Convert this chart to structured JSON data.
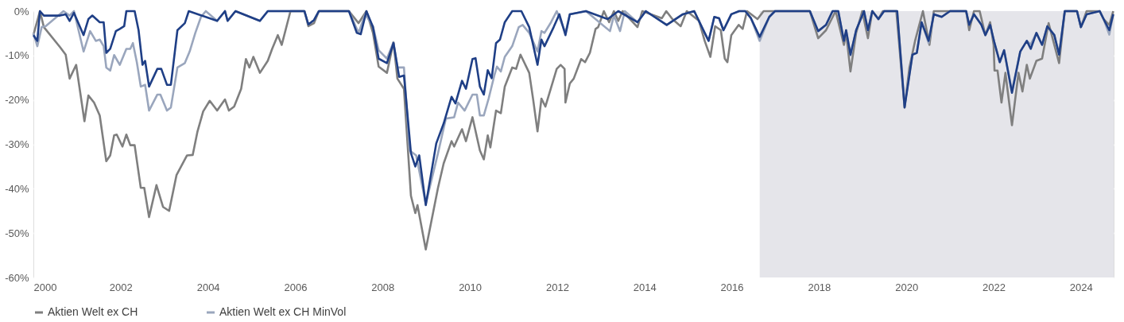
{
  "chart_data": {
    "type": "line",
    "xlim": [
      2000,
      2024.75
    ],
    "xticks": [
      2000,
      2002,
      2004,
      2006,
      2008,
      2010,
      2012,
      2014,
      2016,
      2018,
      2020,
      2022,
      2024
    ],
    "ylim": [
      -60,
      0
    ],
    "yticks": [
      {
        "value": -60,
        "label": "-60%"
      },
      {
        "value": -50,
        "label": "-50%"
      },
      {
        "value": -40,
        "label": "-40%"
      },
      {
        "value": -30,
        "label": "-30%"
      },
      {
        "value": -20,
        "label": "-20%"
      },
      {
        "value": -10,
        "label": "-10%"
      },
      {
        "value": 0,
        "label": "0%"
      }
    ],
    "grid": "y",
    "legend": "bottom",
    "line_style": "solid",
    "bands": [
      {
        "axis": "x",
        "from": 2016.64,
        "to": 2024.75,
        "color": "#e5e5ea"
      }
    ],
    "series": [
      {
        "color": "#7f7f7f",
        "name": "Aktien Welt ex CH",
        "x": [
          2000.0,
          2000.15,
          2000.24,
          2000.61,
          2000.74,
          2000.83,
          2000.98,
          2001.17,
          2001.26,
          2001.39,
          2001.52,
          2001.67,
          2001.76,
          2001.85,
          2001.91,
          2002.04,
          2002.13,
          2002.22,
          2002.32,
          2002.46,
          2002.54,
          2002.65,
          2002.82,
          2002.97,
          2003.11,
          2003.28,
          2003.52,
          2003.65,
          2003.76,
          2003.89,
          2004.04,
          2004.21,
          2004.39,
          2004.48,
          2004.6,
          2004.76,
          2004.87,
          2004.95,
          2005.04,
          2005.19,
          2005.37,
          2005.47,
          2005.6,
          2005.69,
          2005.89,
          2006.21,
          2006.3,
          2006.43,
          2006.54,
          2007.23,
          2007.45,
          2007.63,
          2007.78,
          2007.91,
          2008.1,
          2008.25,
          2008.34,
          2008.49,
          2008.65,
          2008.75,
          2008.8,
          2008.99,
          2009.27,
          2009.4,
          2009.58,
          2009.64,
          2009.82,
          2009.91,
          2010.06,
          2010.23,
          2010.32,
          2010.41,
          2010.47,
          2010.6,
          2010.71,
          2010.8,
          2010.97,
          2011.06,
          2011.16,
          2011.36,
          2011.45,
          2011.55,
          2011.64,
          2011.73,
          2011.99,
          2012.08,
          2012.17,
          2012.19,
          2012.29,
          2012.38,
          2012.55,
          2012.64,
          2012.75,
          2012.88,
          2012.94,
          2013.07,
          2013.19,
          2013.3,
          2013.4,
          2013.5,
          2013.84,
          2013.95,
          2014.4,
          2014.5,
          2014.64,
          2014.83,
          2014.97,
          2015.25,
          2015.38,
          2015.51,
          2015.62,
          2015.75,
          2015.84,
          2015.9,
          2015.99,
          2016.16,
          2016.25,
          2016.35,
          2016.59,
          2016.73,
          2017.79,
          2017.98,
          2018.16,
          2018.38,
          2018.57,
          2018.62,
          2018.72,
          2018.85,
          2018.99,
          2019.12,
          2019.22,
          2019.36,
          2019.46,
          2019.77,
          2019.96,
          2020.07,
          2020.2,
          2020.38,
          2020.53,
          2020.63,
          2021.37,
          2021.44,
          2021.55,
          2021.68,
          2021.81,
          2021.92,
          2022.0,
          2022.02,
          2022.09,
          2022.18,
          2022.27,
          2022.42,
          2022.57,
          2022.66,
          2022.76,
          2022.83,
          2022.98,
          2023.11,
          2023.26,
          2023.5,
          2023.63,
          2023.91,
          2024.0,
          2024.13,
          2024.43,
          2024.52,
          2024.65,
          2024.74
        ],
        "values": [
          -5.4,
          0,
          -3.6,
          -8.1,
          -9.8,
          -15.2,
          -12.1,
          -24.8,
          -19,
          -20.6,
          -23.5,
          -33.8,
          -32.5,
          -28,
          -27.8,
          -30.5,
          -27.8,
          -30.2,
          -30.2,
          -39.8,
          -39.8,
          -46.4,
          -39.2,
          -44.1,
          -45,
          -36.9,
          -32.5,
          -32.4,
          -27.1,
          -22.6,
          -20.2,
          -22.4,
          -19.9,
          -22.4,
          -21.5,
          -17.5,
          -10.8,
          -12.7,
          -10.3,
          -13.9,
          -11.2,
          -8.5,
          -5.4,
          -7.6,
          0,
          0,
          -3.4,
          -2.7,
          0,
          0,
          -2.7,
          0,
          -4.9,
          -12.5,
          -13.9,
          -7,
          -15.2,
          -17.5,
          -41.6,
          -45.5,
          -43.7,
          -53.7,
          -39.8,
          -34.3,
          -29.3,
          -30.5,
          -26.6,
          -29.3,
          -23.9,
          -31.4,
          -33.4,
          -28,
          -30.7,
          -22.4,
          -23,
          -17,
          -12.7,
          -13,
          -9.8,
          -13.9,
          -19.9,
          -27.1,
          -19.7,
          -21.5,
          -13,
          -12.1,
          -13,
          -20.6,
          -16.3,
          -15.2,
          -10.8,
          -11.5,
          -9.4,
          -4,
          -3.6,
          0,
          -2.5,
          0,
          -2.2,
          0,
          -3.6,
          0,
          -1.6,
          0,
          -1.8,
          -3.4,
          0,
          -2.2,
          -6.7,
          -10.3,
          -3.4,
          -4.3,
          -10.7,
          -11.5,
          -5.4,
          -3.1,
          -4,
          0,
          -1.8,
          0,
          0,
          -6.1,
          -4.3,
          0,
          -7.6,
          -4.9,
          -13.6,
          -4.9,
          0,
          -6.1,
          0,
          -1.8,
          0,
          0,
          -21.7,
          -12.7,
          -6.7,
          0,
          -7.6,
          0,
          0,
          -4.3,
          0,
          0,
          -5.4,
          -2.5,
          -7.6,
          -13.4,
          -13.4,
          -20.6,
          -13.9,
          -25.7,
          -13.9,
          -18.1,
          -12.1,
          -15.2,
          -11.2,
          -10.7,
          -2.7,
          -11.7,
          0,
          0,
          -3.6,
          0,
          0,
          -1.8,
          -3.1,
          0
        ]
      },
      {
        "color": "#9aa6bd",
        "name": "Aktien Welt ex CH MinVol",
        "x": [
          2000.0,
          2000.09,
          2000.19,
          2000.28,
          2000.69,
          2000.83,
          2000.93,
          2001.15,
          2001.3,
          2001.43,
          2001.52,
          2001.61,
          2001.67,
          2001.76,
          2001.85,
          2001.98,
          2002.13,
          2002.22,
          2002.28,
          2002.37,
          2002.46,
          2002.56,
          2002.65,
          2002.84,
          2002.91,
          2003.06,
          2003.15,
          2003.3,
          2003.47,
          2003.58,
          2003.71,
          2003.84,
          2003.95,
          2004.21,
          2004.39,
          2004.45,
          2004.63,
          2005.19,
          2005.37,
          2005.74,
          2006.21,
          2006.3,
          2006.43,
          2006.54,
          2007.23,
          2007.45,
          2007.6,
          2007.78,
          2007.91,
          2008.1,
          2008.25,
          2008.34,
          2008.49,
          2008.62,
          2008.77,
          2008.99,
          2009.27,
          2009.45,
          2009.64,
          2009.73,
          2009.88,
          2010.06,
          2010.16,
          2010.23,
          2010.32,
          2010.43,
          2010.56,
          2010.62,
          2010.71,
          2010.8,
          2010.97,
          2011.12,
          2011.21,
          2011.36,
          2011.55,
          2011.64,
          2011.71,
          2011.86,
          2011.99,
          2012.19,
          2012.29,
          2012.66,
          2013.21,
          2013.3,
          2013.44,
          2013.55,
          2013.84,
          2014.03,
          2014.51,
          2014.88,
          2015.14,
          2015.38,
          2015.47,
          2015.6,
          2015.71,
          2015.81,
          2015.99,
          2016.17,
          2016.31,
          2016.44,
          2016.64,
          2016.86,
          2016.99,
          2017.79,
          2017.98,
          2018.16,
          2018.31,
          2018.44,
          2018.57,
          2018.62,
          2018.72,
          2018.85,
          2019.03,
          2019.12,
          2019.22,
          2019.36,
          2019.49,
          2019.79,
          2019.96,
          2020.14,
          2020.24,
          2020.35,
          2020.51,
          2020.63,
          2020.81,
          2021.0,
          2021.37,
          2021.44,
          2021.55,
          2021.72,
          2021.81,
          2021.92,
          2022.02,
          2022.14,
          2022.24,
          2022.42,
          2022.61,
          2022.76,
          2022.85,
          2022.98,
          2023.11,
          2023.23,
          2023.39,
          2023.5,
          2023.63,
          2023.91,
          2024.0,
          2024.13,
          2024.43,
          2024.52,
          2024.65,
          2024.74
        ],
        "values": [
          -4.9,
          -7.9,
          -3.6,
          -3.4,
          0,
          -1,
          0,
          -9.1,
          -4.5,
          -6.7,
          -6.4,
          -7.9,
          -12.7,
          -13.4,
          -9.9,
          -12.1,
          -8.5,
          -8.5,
          -7.2,
          -11.5,
          -17,
          -16.6,
          -22.4,
          -18.8,
          -18.8,
          -22.4,
          -21.7,
          -12.7,
          -11.7,
          -9.1,
          -4.9,
          -1.3,
          0,
          -2.2,
          0,
          -2.2,
          0,
          -2.2,
          0,
          0,
          0,
          -3,
          -2,
          0,
          0,
          -4.9,
          -0.7,
          -3.4,
          -8.8,
          -10.7,
          -7,
          -12.7,
          -12.7,
          -31.4,
          -32.5,
          -43.4,
          -32,
          -24.2,
          -23.9,
          -20.6,
          -22.4,
          -18.8,
          -18.8,
          -23.5,
          -23.5,
          -19.7,
          -14.5,
          -12.5,
          -13.6,
          -10.3,
          -7.9,
          -3.6,
          -3.1,
          -4.9,
          -9.1,
          -4.5,
          -4.9,
          -2.5,
          0,
          -4.9,
          -0.7,
          0,
          -4.5,
          -1,
          -4.5,
          0,
          -2.5,
          0,
          -3.1,
          -0.7,
          0,
          -4.9,
          -6.7,
          -1.3,
          -1.6,
          -4.3,
          -0.7,
          0,
          0,
          -1.6,
          -6.7,
          -1.3,
          0,
          0,
          -4.5,
          -3.1,
          0,
          0,
          -6.7,
          -4.3,
          -10,
          -4.3,
          0,
          -4.3,
          0,
          -1.8,
          0,
          0,
          -21.2,
          -9.8,
          -9.4,
          -2.5,
          -7.2,
          -0.7,
          -1.3,
          0,
          0,
          -3.1,
          -0.7,
          -3.1,
          -5.4,
          -3.1,
          -7.2,
          -11.5,
          -8.8,
          -18,
          -9.1,
          -6.7,
          -7.5,
          -4.9,
          -7.6,
          -3.4,
          -5.4,
          -9.8,
          0,
          0,
          -3.6,
          -0.7,
          0,
          -1.8,
          -5.3,
          -0.7
        ]
      },
      {
        "color": "#1f3f86",
        "x": [
          2000.0,
          2000.09,
          2000.15,
          2000.24,
          2000.61,
          2000.74,
          2000.83,
          2000.93,
          2001.15,
          2001.26,
          2001.35,
          2001.52,
          2001.61,
          2001.67,
          2001.76,
          2001.89,
          2001.98,
          2002.08,
          2002.13,
          2002.32,
          2002.41,
          2002.5,
          2002.56,
          2002.65,
          2002.84,
          2002.93,
          2003.06,
          2003.15,
          2003.3,
          2003.47,
          2003.56,
          2004.21,
          2004.39,
          2004.45,
          2004.63,
          2005.19,
          2005.37,
          2005.74,
          2006.21,
          2006.3,
          2006.43,
          2006.54,
          2007.23,
          2007.41,
          2007.5,
          2007.63,
          2007.78,
          2007.91,
          2008.1,
          2008.25,
          2008.38,
          2008.49,
          2008.65,
          2008.75,
          2008.84,
          2008.99,
          2009.23,
          2009.4,
          2009.58,
          2009.67,
          2009.82,
          2009.91,
          2010.06,
          2010.13,
          2010.23,
          2010.32,
          2010.41,
          2010.5,
          2010.6,
          2010.69,
          2010.8,
          2010.97,
          2011.18,
          2011.36,
          2011.55,
          2011.64,
          2011.71,
          2011.92,
          2012.05,
          2012.19,
          2012.29,
          2012.66,
          2013.16,
          2013.4,
          2013.84,
          2014.03,
          2014.51,
          2014.88,
          2015.14,
          2015.38,
          2015.47,
          2015.6,
          2015.71,
          2015.81,
          2015.99,
          2016.17,
          2016.31,
          2016.44,
          2016.64,
          2016.86,
          2016.99,
          2017.79,
          2017.98,
          2018.16,
          2018.31,
          2018.44,
          2018.57,
          2018.62,
          2018.72,
          2018.85,
          2019.03,
          2019.12,
          2019.22,
          2019.36,
          2019.49,
          2019.79,
          2019.96,
          2020.14,
          2020.24,
          2020.35,
          2020.51,
          2020.63,
          2020.81,
          2021.0,
          2021.37,
          2021.44,
          2021.55,
          2021.72,
          2021.81,
          2021.92,
          2022.02,
          2022.14,
          2022.24,
          2022.42,
          2022.61,
          2022.76,
          2022.85,
          2022.98,
          2023.11,
          2023.23,
          2023.39,
          2023.5,
          2023.63,
          2023.91,
          2024.0,
          2024.13,
          2024.43,
          2024.52,
          2024.65,
          2024.74
        ],
        "values": [
          -5.4,
          -6.7,
          0,
          -1,
          -1,
          -0.7,
          -2.2,
          -0.4,
          -5.4,
          -1.8,
          -1,
          -2.5,
          -2.5,
          -9.4,
          -8.5,
          -4.5,
          -4,
          -3.4,
          0,
          0,
          -4.3,
          -12.1,
          -11.2,
          -17,
          -13,
          -13,
          -16.6,
          -16.6,
          -4.3,
          -2.7,
          0,
          -2.2,
          0,
          -2.2,
          0,
          -2.2,
          0,
          0,
          0,
          -3,
          -2,
          0,
          0,
          -4.9,
          -5.2,
          0,
          -3.6,
          -10.7,
          -11.7,
          -7.2,
          -14.8,
          -14.5,
          -32,
          -35,
          -32.5,
          -43.7,
          -29.8,
          -25.3,
          -19.3,
          -20.8,
          -15.7,
          -17.5,
          -10.8,
          -10.6,
          -17,
          -18.8,
          -13.3,
          -15.1,
          -7.2,
          -6.4,
          -2.5,
          0,
          0,
          -3.6,
          -12.1,
          -6.4,
          -7.9,
          -3.6,
          -0.7,
          -5.4,
          -0.7,
          0,
          -1.8,
          0,
          -2.5,
          0,
          -3.1,
          -0.7,
          0,
          -4.9,
          -6.7,
          -1.3,
          -1.6,
          -4.3,
          -0.7,
          0,
          0,
          -1.6,
          -5.8,
          -1.3,
          0,
          0,
          -4.5,
          -3.1,
          0,
          0,
          -6.7,
          -4.3,
          -9.8,
          -4.3,
          0,
          -4.3,
          0,
          -1.8,
          0,
          0,
          -21.7,
          -9.8,
          -9.4,
          -2.5,
          -6.7,
          -0.7,
          -1.3,
          0,
          0,
          -3.1,
          -0.7,
          -3.1,
          -5.4,
          -3.1,
          -7.2,
          -11.5,
          -8.8,
          -18.4,
          -9.1,
          -6.7,
          -8.5,
          -4.9,
          -7.6,
          -3.4,
          -5.4,
          -9.8,
          0,
          0,
          -3.6,
          -0.7,
          0,
          -1.8,
          -4.3,
          -0.7
        ]
      }
    ]
  }
}
